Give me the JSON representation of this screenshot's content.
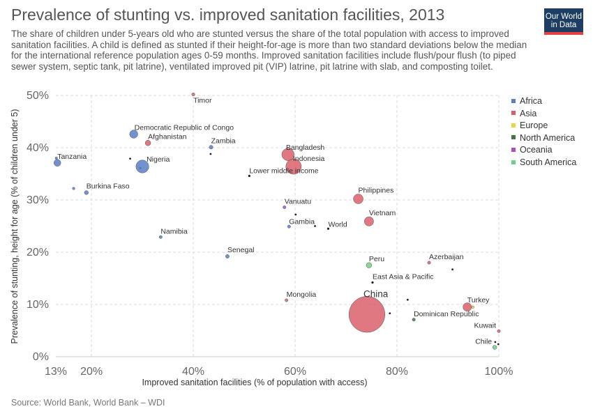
{
  "header": {
    "title": "Prevalence of stunting vs. improved sanitation facilities, 2013",
    "subtitle": "The share of children under 5-years old who are stunted versus the share of the total population with access to improved sanitation facilities. A child is defined as stunted if their height-for-age is more than two standard deviations below the median for the international reference population ages 0-59 months. Improved sanitation facilities include flush/pour flush (to piped sewer system, septic tank, pit latrine), ventilated improved pit (VIP) latrine, pit latrine with slab, and composting toilet.",
    "logo_line1": "Our World",
    "logo_line2": "in Data"
  },
  "footer": {
    "source": "Source: World Bank, World Bank – WDI"
  },
  "colors": {
    "Africa": "#5b7ec6",
    "Asia": "#d9606a",
    "Europe": "#f0d33a",
    "North America": "#3d7a3d",
    "Oceania": "#a94fc4",
    "South America": "#6fcf8a",
    "Aggregate": "#222222",
    "logo_bg": "#1d3d63",
    "logo_accent": "#e5413f"
  },
  "chart_data": {
    "type": "scatter",
    "title": "Prevalence of stunting vs. improved sanitation facilities, 2013",
    "xlabel": "Improved sanitation facilities (% of population with access)",
    "ylabel": "Prevalence of stunting, height for age (% of children under 5)",
    "xlim": [
      13,
      100
    ],
    "ylim": [
      0,
      50
    ],
    "x_ticks": [
      13,
      20,
      40,
      60,
      80,
      100
    ],
    "x_tick_labels": [
      "13%",
      "20%",
      "40%",
      "60%",
      "80%",
      "100%"
    ],
    "y_ticks": [
      0,
      10,
      20,
      30,
      40,
      50
    ],
    "y_tick_labels": [
      "0%",
      "10%",
      "20%",
      "30%",
      "40%",
      "50%"
    ],
    "legend_position": "right",
    "legend": [
      "Africa",
      "Asia",
      "Europe",
      "North America",
      "Oceania",
      "South America"
    ],
    "points": [
      {
        "label": "Timor",
        "x": 40,
        "y": 50.2,
        "region": "Asia",
        "size": 1
      },
      {
        "label": "Democratic Republic of Congo",
        "x": 28.3,
        "y": 42.6,
        "region": "Africa",
        "size": 70
      },
      {
        "label": "Afghanistan",
        "x": 31.1,
        "y": 40.9,
        "region": "Asia",
        "size": 32
      },
      {
        "label": "Zambia",
        "x": 43.5,
        "y": 40.1,
        "region": "Africa",
        "size": 15
      },
      {
        "label": "Bangladesh",
        "x": 58.6,
        "y": 38.7,
        "region": "Asia",
        "size": 159
      },
      {
        "label": "Indonesia",
        "x": 59.7,
        "y": 36.4,
        "region": "Asia",
        "size": 250
      },
      {
        "label": "Tanzania",
        "x": 13.3,
        "y": 37.1,
        "region": "Africa",
        "size": 50
      },
      {
        "label": "Nigeria",
        "x": 30.0,
        "y": 36.4,
        "region": "Africa",
        "size": 173
      },
      {
        "label": "Lower middle income",
        "x": 51.0,
        "y": 34.6,
        "region": "Aggregate",
        "size": 0
      },
      {
        "label": "Burkina Faso",
        "x": 19.0,
        "y": 31.4,
        "region": "Africa",
        "size": 17
      },
      {
        "label": "Philippines",
        "x": 72.4,
        "y": 30.2,
        "region": "Asia",
        "size": 100
      },
      {
        "label": "Vanuatu",
        "x": 57.9,
        "y": 28.6,
        "region": "Oceania",
        "size": 0.3
      },
      {
        "label": "Vietnam",
        "x": 74.5,
        "y": 25.9,
        "region": "Asia",
        "size": 90
      },
      {
        "label": "Gambia",
        "x": 58.8,
        "y": 24.9,
        "region": "Africa",
        "size": 2
      },
      {
        "label": "World",
        "x": 66.5,
        "y": 24.5,
        "region": "Aggregate",
        "size": 0
      },
      {
        "label": "Namibia",
        "x": 33.6,
        "y": 22.9,
        "region": "Africa",
        "size": 2.3
      },
      {
        "label": "Senegal",
        "x": 46.7,
        "y": 19.2,
        "region": "Africa",
        "size": 14
      },
      {
        "label": "Peru",
        "x": 74.5,
        "y": 17.5,
        "region": "South America",
        "size": 31
      },
      {
        "label": "Azerbaijan",
        "x": 86.3,
        "y": 18.0,
        "region": "Asia",
        "size": 9.5
      },
      {
        "label": "East Asia & Pacific",
        "x": 75.2,
        "y": 14.2,
        "region": "Aggregate",
        "size": 0
      },
      {
        "label": "Mongolia",
        "x": 58.3,
        "y": 10.8,
        "region": "Asia",
        "size": 3
      },
      {
        "label": "Turkey",
        "x": 93.8,
        "y": 9.5,
        "region": "Asia",
        "size": 76
      },
      {
        "label": "China",
        "x": 74.1,
        "y": 8.1,
        "region": "Asia",
        "size": 1360
      },
      {
        "label": "Dominican Republic",
        "x": 83.3,
        "y": 7.1,
        "region": "North America",
        "size": 10
      },
      {
        "label": "Kuwait",
        "x": 100,
        "y": 4.9,
        "region": "Asia",
        "size": 3.9
      },
      {
        "label": "Chile",
        "x": 99.2,
        "y": 1.8,
        "region": "South America",
        "size": 17.6
      }
    ],
    "unlabeled_points": [
      {
        "x": 13.1,
        "y": 38.0,
        "region": "Africa"
      },
      {
        "x": 16.5,
        "y": 32.2,
        "region": "Africa"
      },
      {
        "x": 27.6,
        "y": 37.9,
        "region": "Aggregate"
      },
      {
        "x": 29.6,
        "y": 36.1,
        "region": "Aggregate"
      },
      {
        "x": 43.4,
        "y": 38.8,
        "region": "Aggregate"
      },
      {
        "x": 60.1,
        "y": 27.2,
        "region": "Aggregate"
      },
      {
        "x": 63.9,
        "y": 25.0,
        "region": "Aggregate"
      },
      {
        "x": 90.9,
        "y": 16.7,
        "region": "Aggregate"
      },
      {
        "x": 82.1,
        "y": 10.9,
        "region": "Aggregate"
      },
      {
        "x": 78.6,
        "y": 8.3,
        "region": "Aggregate"
      },
      {
        "x": 94.9,
        "y": 9.5,
        "region": "Europe"
      },
      {
        "x": 99.3,
        "y": 2.8,
        "region": "Aggregate"
      },
      {
        "x": 99.9,
        "y": 2.4,
        "region": "Aggregate"
      }
    ]
  }
}
